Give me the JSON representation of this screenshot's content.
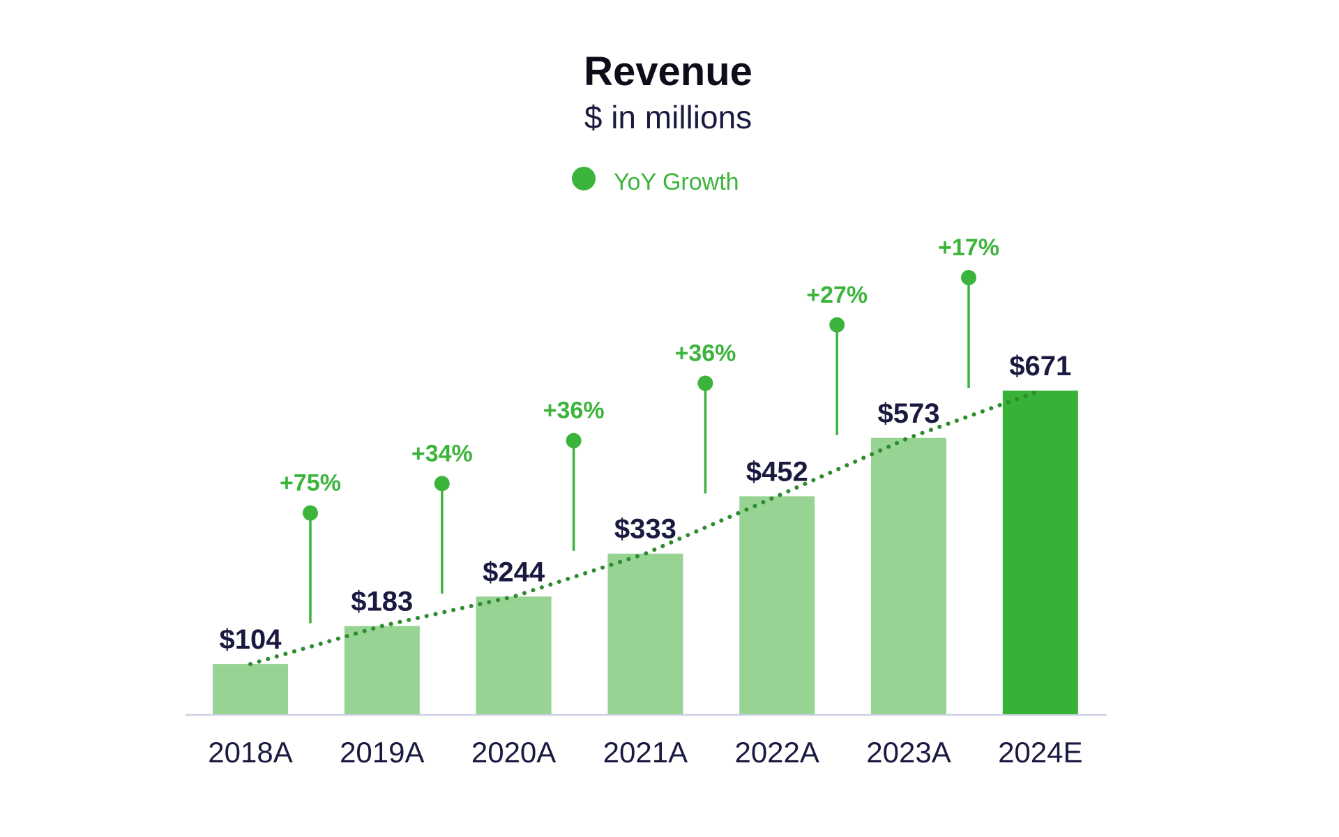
{
  "chart_data": {
    "type": "bar",
    "title": "Revenue",
    "subtitle": "$ in millions",
    "legend": [
      {
        "name": "YoY Growth",
        "marker": "circle",
        "color": "#3cb43c"
      }
    ],
    "legend_placement": "top-center",
    "categories": [
      "2018A",
      "2019A",
      "2020A",
      "2021A",
      "2022A",
      "2023A",
      "2024E"
    ],
    "values": [
      104,
      183,
      244,
      333,
      452,
      573,
      671
    ],
    "value_labels": [
      "$104",
      "$183",
      "$244",
      "$333",
      "$452",
      "$573",
      "$671"
    ],
    "growth_series": {
      "name": "YoY Growth",
      "values": [
        75,
        34,
        36,
        36,
        27,
        17
      ],
      "labels": [
        "+75%",
        "+34%",
        "+36%",
        "+36%",
        "+27%",
        "+17%"
      ]
    },
    "trendline": "dotted",
    "ylim": [
      0,
      671
    ],
    "grid": false,
    "colors": {
      "actual_bar": "#97d493",
      "estimate_bar": "#37b236",
      "growth": "#3cb43c",
      "trend": "#2e8b2e",
      "text": "#1a1a40",
      "axis": "#d0d0e6"
    }
  }
}
